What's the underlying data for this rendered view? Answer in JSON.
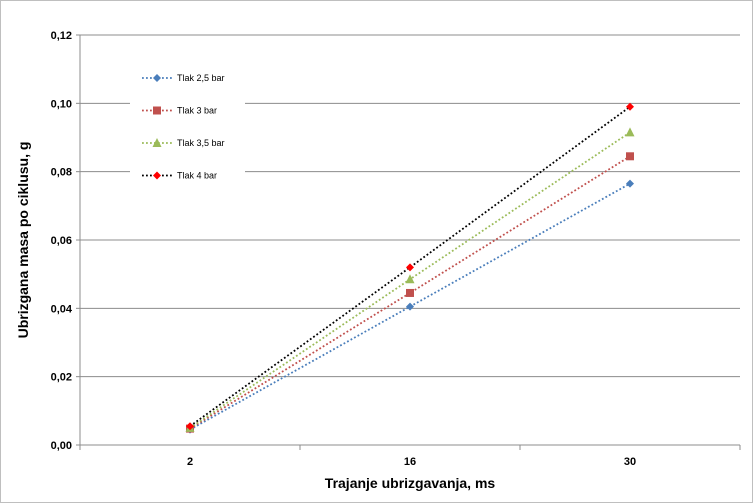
{
  "chart_data": {
    "type": "line",
    "title": "",
    "xlabel": "Trajanje ubrizgavanja, ms",
    "ylabel": "Ubrizgana masa po ciklusu, g",
    "categories": [
      "2",
      "16",
      "30"
    ],
    "ylim": [
      0,
      0.12
    ],
    "yticks": [
      "0,00",
      "0,02",
      "0,04",
      "0,06",
      "0,08",
      "0,10",
      "0,12"
    ],
    "grid": true,
    "legend": "top-left",
    "series": [
      {
        "name": "Tlak 2,5 bar",
        "values": [
          0.0045,
          0.0405,
          0.0765
        ],
        "color": "#4a7ebb",
        "marker": "diamond"
      },
      {
        "name": "Tlak 3 bar",
        "values": [
          0.0048,
          0.0445,
          0.0845
        ],
        "color": "#c0504d",
        "marker": "square"
      },
      {
        "name": "Tlak 3,5 bar",
        "values": [
          0.005,
          0.0485,
          0.0915
        ],
        "color": "#9bbb59",
        "marker": "triangle"
      },
      {
        "name": "Tlak 4 bar",
        "values": [
          0.0055,
          0.052,
          0.099
        ],
        "color": "#000000",
        "marker": "diamond",
        "marker_color": "#ff0000"
      }
    ]
  }
}
